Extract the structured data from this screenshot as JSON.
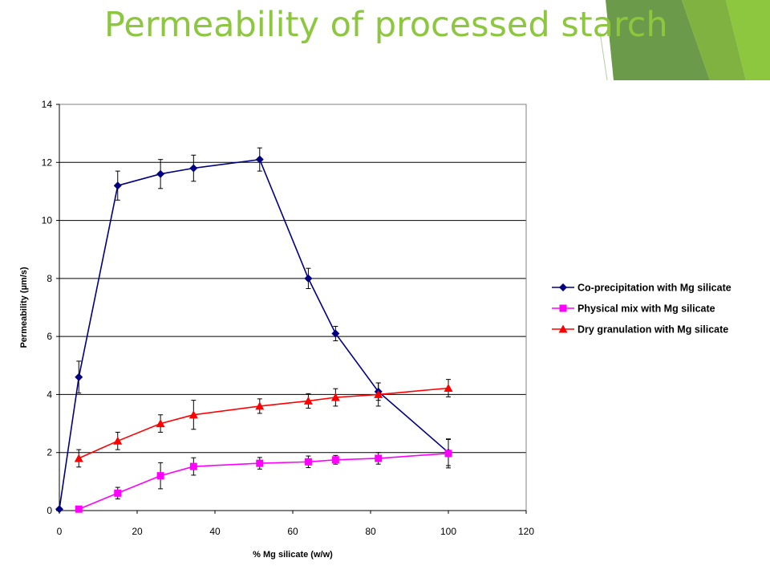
{
  "slide": {
    "title": "Permeability of processed starch"
  },
  "chart_data": {
    "type": "line",
    "title": "",
    "xlabel": "% Mg silicate (w/w)",
    "ylabel": "Permeability (µm/s)",
    "xlim": [
      0,
      120
    ],
    "ylim": [
      0,
      14
    ],
    "x_ticks": [
      0,
      20,
      40,
      60,
      80,
      100,
      120
    ],
    "y_ticks": [
      0,
      2,
      4,
      6,
      8,
      10,
      12,
      14
    ],
    "grid": "horizontal",
    "legend_position": "right",
    "series": [
      {
        "name": "Co-precipitation with Mg silicate",
        "color": "#000080",
        "marker": "diamond",
        "x": [
          0,
          5,
          15,
          26,
          34.5,
          51.5,
          64,
          71,
          82,
          100
        ],
        "y": [
          0.05,
          4.6,
          11.2,
          11.6,
          11.8,
          12.1,
          8.0,
          6.1,
          4.1,
          2.0
        ],
        "error": [
          0,
          0.55,
          0.5,
          0.5,
          0.45,
          0.4,
          0.35,
          0.25,
          0.3,
          0.45
        ]
      },
      {
        "name": "Physical mix with Mg silicate",
        "color": "#ff00ff",
        "marker": "square",
        "x": [
          5,
          15,
          26,
          34.5,
          51.5,
          64,
          71,
          82,
          100
        ],
        "y": [
          0.05,
          0.6,
          1.2,
          1.52,
          1.63,
          1.68,
          1.75,
          1.8,
          1.97
        ],
        "error": [
          0,
          0.2,
          0.45,
          0.3,
          0.2,
          0.2,
          0.15,
          0.2,
          0.5
        ]
      },
      {
        "name": "Dry granulation with Mg silicate",
        "color": "#ff0000",
        "marker": "triangle",
        "x": [
          5,
          15,
          26,
          34.5,
          51.5,
          64,
          71,
          82,
          100
        ],
        "y": [
          1.8,
          2.4,
          3.0,
          3.3,
          3.6,
          3.78,
          3.9,
          4.0,
          4.22
        ],
        "error": [
          0.3,
          0.3,
          0.3,
          0.5,
          0.25,
          0.25,
          0.3,
          0.4,
          0.3
        ]
      }
    ]
  }
}
